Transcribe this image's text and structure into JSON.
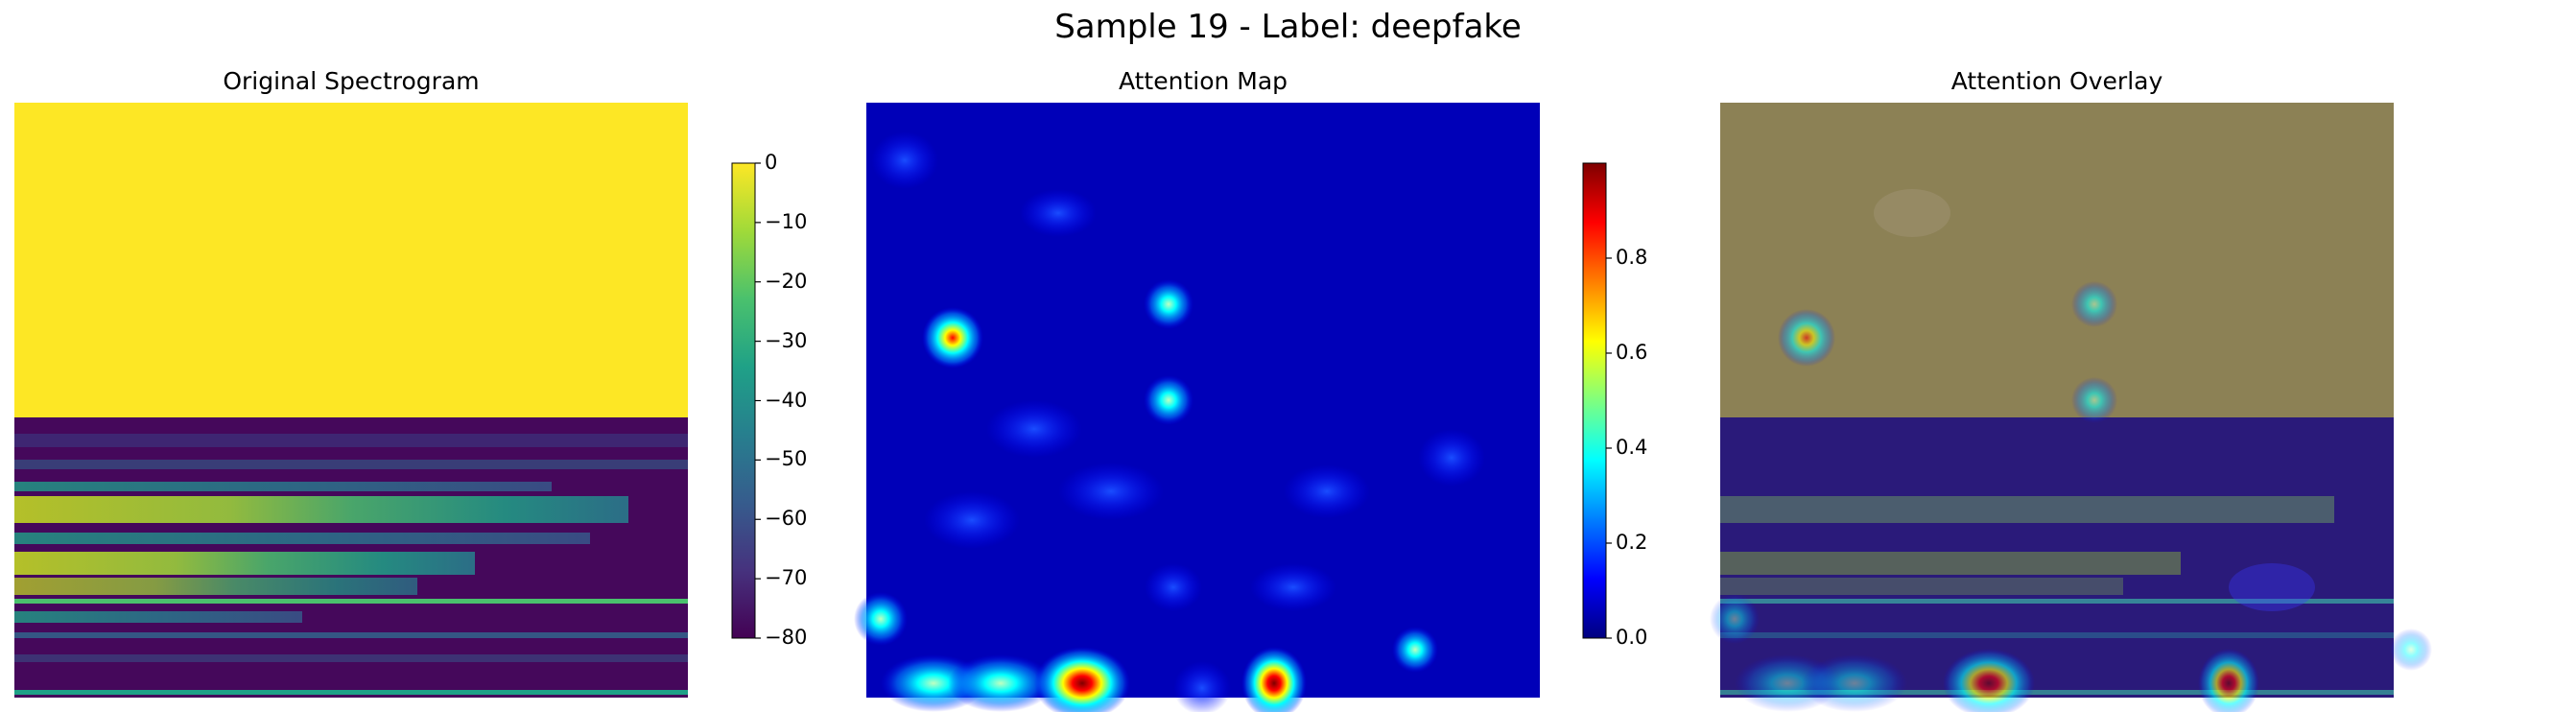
{
  "figure": {
    "suptitle": "Sample 19 - Label: deepfake"
  },
  "colors": {
    "viridis": [
      "#440154",
      "#46327e",
      "#365c8d",
      "#277f8e",
      "#1fa187",
      "#4ac16d",
      "#a0da39",
      "#fde725"
    ],
    "jet": [
      "#00007f",
      "#0000ff",
      "#007fff",
      "#00ffff",
      "#7fff7f",
      "#ffff00",
      "#ff7f00",
      "#ff0000",
      "#7f0000"
    ]
  },
  "chart_data": [
    {
      "type": "heatmap",
      "title": "Original Spectrogram",
      "axis": "off",
      "colormap": "viridis",
      "clim": [
        -80,
        0
      ],
      "colorbar_ticks": [
        0,
        -10,
        -20,
        -30,
        -40,
        -50,
        -60,
        -70,
        -80
      ],
      "description_regions": {
        "upper_half_value": 0,
        "lower_half_background_value": -75
      }
    },
    {
      "type": "heatmap",
      "title": "Attention Map",
      "axis": "off",
      "colormap": "jet",
      "clim": [
        0,
        1
      ],
      "colorbar_ticks": [
        "0.0",
        "0.2",
        "0.4",
        "0.6",
        "0.8"
      ],
      "hotspots": [
        {
          "x": 0.13,
          "y": 0.39,
          "value": 0.85
        },
        {
          "x": 0.45,
          "y": 0.34,
          "value": 0.45
        },
        {
          "x": 0.45,
          "y": 0.5,
          "value": 0.45
        },
        {
          "x": 0.03,
          "y": 0.87,
          "value": 0.38
        },
        {
          "x": 0.8,
          "y": 0.92,
          "value": 0.38
        },
        {
          "x": 0.32,
          "y": 0.97,
          "value": 0.95
        },
        {
          "x": 0.61,
          "y": 0.97,
          "value": 0.95
        },
        {
          "x": 0.12,
          "y": 0.97,
          "value": 0.45
        }
      ]
    },
    {
      "type": "heatmap",
      "title": "Attention Overlay",
      "axis": "off",
      "colormap": "jet over viridis"
    }
  ]
}
